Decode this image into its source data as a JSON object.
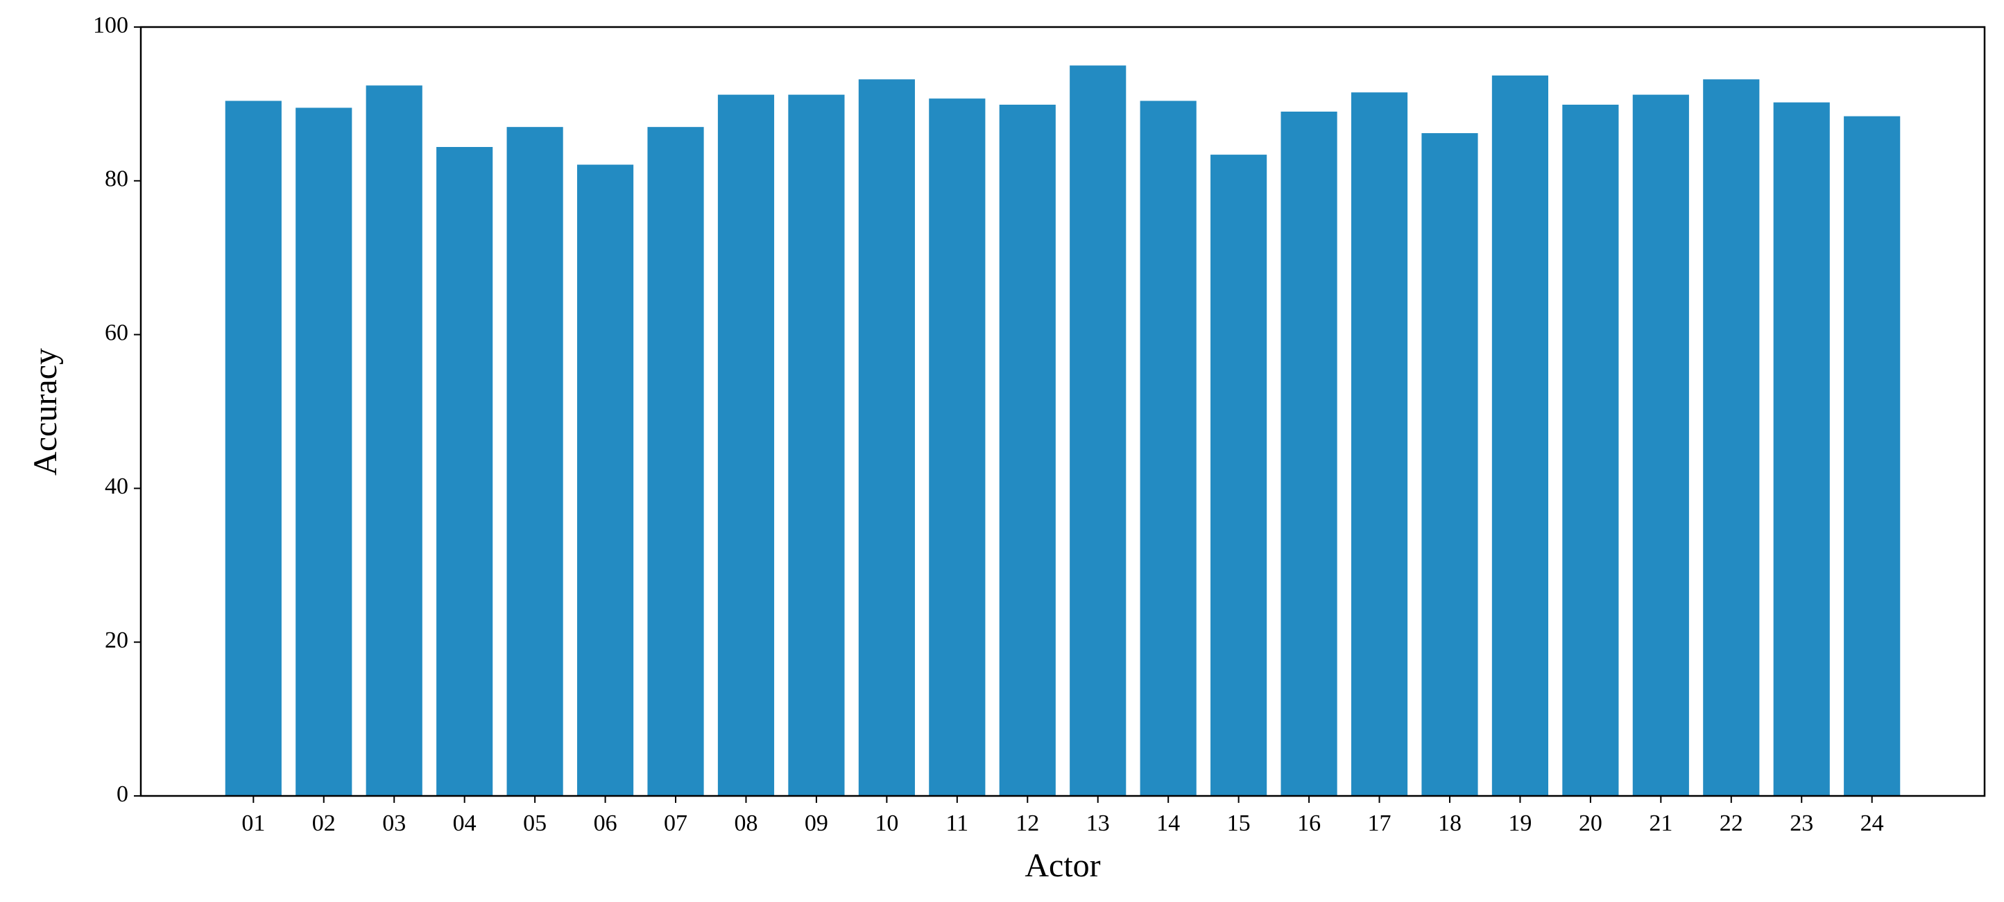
{
  "chart_data": {
    "type": "bar",
    "x_label": "Actor",
    "y_label": "Accuracy",
    "categories": [
      "01",
      "02",
      "03",
      "04",
      "05",
      "06",
      "07",
      "08",
      "09",
      "10",
      "11",
      "12",
      "13",
      "14",
      "15",
      "16",
      "17",
      "18",
      "19",
      "20",
      "21",
      "22",
      "23",
      "24"
    ],
    "values": [
      90.4,
      89.5,
      92.4,
      84.4,
      87.0,
      82.1,
      87.0,
      91.2,
      91.2,
      93.2,
      90.7,
      89.9,
      95.0,
      90.4,
      83.4,
      89.0,
      91.5,
      86.2,
      93.7,
      89.9,
      91.2,
      93.2,
      90.2,
      88.4
    ],
    "color": "#238bc2",
    "ylim": [
      0,
      100
    ],
    "yticks": [
      0,
      20,
      40,
      60,
      80,
      100
    ],
    "grid": false
  }
}
